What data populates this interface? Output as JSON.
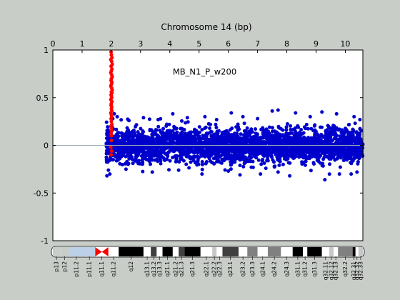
{
  "chart_data": {
    "type": "scatter",
    "title": "Chromosome 14 (bp)",
    "annotation": "MB_N1_P_w200",
    "xlim": [
      0,
      10.6
    ],
    "ylim": [
      -1,
      1
    ],
    "x_ticks": [
      "0",
      "1",
      "2",
      "3",
      "4",
      "5",
      "6",
      "7",
      "8",
      "9",
      "10"
    ],
    "y_ticks": [
      "1",
      "0.5",
      "0",
      "-0.5",
      "-1"
    ],
    "series": [
      {
        "color": "#ff0000",
        "points": [
          [
            1.99,
            0.98
          ],
          [
            2.0,
            0.95
          ],
          [
            2.02,
            0.92
          ],
          [
            1.98,
            0.9
          ],
          [
            2.01,
            0.88
          ],
          [
            2.03,
            0.85
          ],
          [
            1.99,
            0.83
          ],
          [
            2.02,
            0.8
          ],
          [
            2.0,
            0.78
          ],
          [
            1.98,
            0.76
          ],
          [
            2.01,
            0.74
          ],
          [
            2.03,
            0.72
          ],
          [
            2.0,
            0.7
          ],
          [
            1.99,
            0.68
          ],
          [
            2.02,
            0.66
          ],
          [
            2.0,
            0.64
          ],
          [
            1.98,
            0.62
          ],
          [
            2.01,
            0.6
          ],
          [
            2.03,
            0.58
          ],
          [
            2.0,
            0.56
          ],
          [
            2.02,
            0.55
          ],
          [
            1.99,
            0.53
          ],
          [
            2.0,
            0.52
          ],
          [
            2.01,
            0.5
          ],
          [
            1.98,
            0.48
          ],
          [
            2.02,
            0.46
          ],
          [
            2.0,
            0.44
          ],
          [
            1.99,
            0.42
          ],
          [
            2.01,
            0.4
          ],
          [
            2.0,
            0.38
          ],
          [
            2.02,
            0.36
          ],
          [
            1.98,
            0.34
          ],
          [
            2.0,
            0.32
          ],
          [
            2.01,
            0.3
          ],
          [
            1.99,
            0.28
          ],
          [
            2.0,
            0.25
          ],
          [
            2.02,
            0.22
          ],
          [
            1.98,
            0.2
          ],
          [
            2.0,
            0.18
          ],
          [
            2.01,
            0.15
          ],
          [
            1.99,
            0.12
          ],
          [
            2.0,
            0.1
          ],
          [
            2.0,
            0.05
          ],
          [
            1.98,
            -0.02
          ],
          [
            2.01,
            -0.06
          ],
          [
            1.99,
            -0.1
          ]
        ]
      },
      {
        "color": "#0000cc",
        "x_range": [
          1.83,
          10.6
        ],
        "band": [
          -0.18,
          0.18
        ],
        "outliers": [
          [
            1.85,
            -0.32
          ],
          [
            1.9,
            -0.26
          ],
          [
            1.95,
            -0.3
          ],
          [
            2.05,
            0.28
          ],
          [
            2.1,
            0.33
          ],
          [
            2.2,
            0.3
          ],
          [
            2.6,
            0.26
          ],
          [
            3.1,
            0.29
          ],
          [
            3.6,
            0.27
          ],
          [
            4.1,
            0.33
          ],
          [
            4.6,
            0.29
          ],
          [
            5.2,
            0.3
          ],
          [
            5.6,
            0.27
          ],
          [
            6.1,
            0.34
          ],
          [
            6.5,
            0.3
          ],
          [
            7.0,
            0.28
          ],
          [
            7.5,
            0.36
          ],
          [
            7.7,
            0.37
          ],
          [
            8.3,
            0.34
          ],
          [
            8.8,
            0.3
          ],
          [
            9.2,
            0.35
          ],
          [
            9.7,
            0.33
          ],
          [
            10.3,
            0.3
          ],
          [
            10.5,
            0.27
          ],
          [
            2.5,
            -0.25
          ],
          [
            3.4,
            -0.28
          ],
          [
            4.3,
            -0.26
          ],
          [
            5.1,
            -0.3
          ],
          [
            6.0,
            -0.27
          ],
          [
            6.4,
            -0.31
          ],
          [
            7.1,
            -0.3
          ],
          [
            7.7,
            -0.28
          ],
          [
            8.1,
            -0.32
          ],
          [
            9.3,
            -0.36
          ],
          [
            9.8,
            -0.3
          ],
          [
            10.2,
            -0.3
          ],
          [
            10.4,
            -0.28
          ]
        ]
      }
    ],
    "zero_line": 0,
    "ideogram": {
      "bands": [
        {
          "start": 0.0,
          "end": 0.25,
          "color": "#c8cdc8",
          "label": "p13"
        },
        {
          "start": 0.25,
          "end": 0.55,
          "color": "#c8cdc8",
          "label": "p12"
        },
        {
          "start": 0.55,
          "end": 1.05,
          "color": "#bcd0e8",
          "label": "p11.2"
        },
        {
          "start": 1.05,
          "end": 1.45,
          "color": "#bcd0e8",
          "label": "p11.1"
        },
        {
          "start": 1.45,
          "end": 1.9,
          "color": "#ff0000",
          "label": "q11.1"
        },
        {
          "start": 1.9,
          "end": 2.25,
          "color": "#ffffff",
          "label": "q11.2"
        },
        {
          "start": 2.25,
          "end": 3.1,
          "color": "#000000",
          "label": "q12"
        },
        {
          "start": 3.1,
          "end": 3.35,
          "color": "#ffffff",
          "label": "q13.1"
        },
        {
          "start": 3.35,
          "end": 3.55,
          "color": "#404040",
          "label": "q13.2"
        },
        {
          "start": 3.55,
          "end": 3.75,
          "color": "#ffffff",
          "label": "q13.3"
        },
        {
          "start": 3.75,
          "end": 4.1,
          "color": "#000000",
          "label": "q21.1"
        },
        {
          "start": 4.1,
          "end": 4.3,
          "color": "#ffffff",
          "label": "q21.2"
        },
        {
          "start": 4.3,
          "end": 4.5,
          "color": "#404040",
          "label": "q21.3"
        },
        {
          "start": 4.5,
          "end": 5.05,
          "color": "#000000",
          "label": "q21.3"
        },
        {
          "start": 5.05,
          "end": 5.45,
          "color": "#ffffff",
          "label": "q22.1"
        },
        {
          "start": 5.45,
          "end": 5.6,
          "color": "#c8c8c8",
          "label": "q22.2"
        },
        {
          "start": 5.6,
          "end": 5.8,
          "color": "#ffffff",
          "label": "q22.3"
        },
        {
          "start": 5.8,
          "end": 6.35,
          "color": "#404040",
          "label": "q23.1"
        },
        {
          "start": 6.35,
          "end": 6.65,
          "color": "#ffffff",
          "label": "q23.2"
        },
        {
          "start": 6.65,
          "end": 7.0,
          "color": "#808080",
          "label": "q23.3"
        },
        {
          "start": 7.0,
          "end": 7.35,
          "color": "#ffffff",
          "label": "q24.1"
        },
        {
          "start": 7.35,
          "end": 7.8,
          "color": "#808080",
          "label": "q24.2"
        },
        {
          "start": 7.8,
          "end": 8.2,
          "color": "#ffffff",
          "label": "q24.3"
        },
        {
          "start": 8.2,
          "end": 8.55,
          "color": "#000000",
          "label": "q31.1"
        },
        {
          "start": 8.55,
          "end": 8.7,
          "color": "#ffffff",
          "label": "q31.2"
        },
        {
          "start": 8.7,
          "end": 9.2,
          "color": "#000000",
          "label": "q31.3"
        },
        {
          "start": 9.2,
          "end": 9.45,
          "color": "#ffffff",
          "label": "q32.11"
        },
        {
          "start": 9.45,
          "end": 9.6,
          "color": "#c8c8c8",
          "label": "q32.12"
        },
        {
          "start": 9.6,
          "end": 9.75,
          "color": "#ffffff",
          "label": "q32.13"
        },
        {
          "start": 9.75,
          "end": 10.25,
          "color": "#808080",
          "label": "q32.2"
        },
        {
          "start": 10.25,
          "end": 10.35,
          "color": "#000000",
          "label": "q32.31"
        },
        {
          "start": 10.35,
          "end": 10.45,
          "color": "#ffffff",
          "label": "q32.32"
        },
        {
          "start": 10.45,
          "end": 10.6,
          "color": "#c8c8c8",
          "label": "q32.33"
        }
      ]
    }
  }
}
